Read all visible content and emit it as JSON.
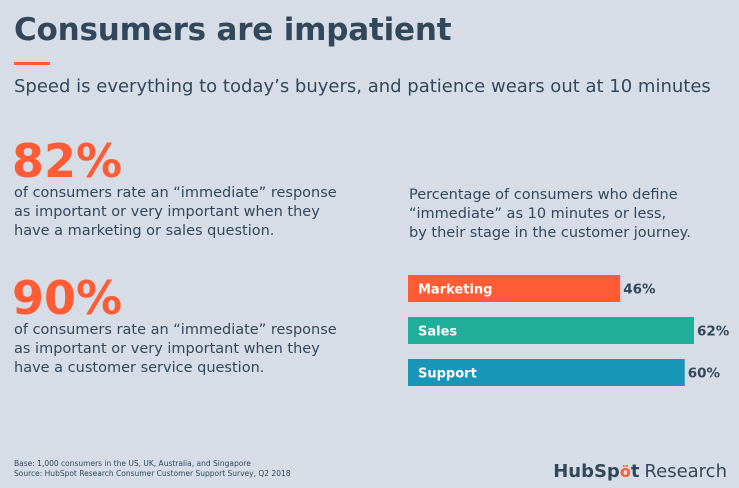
{
  "header": {
    "title": "Consumers are impatient",
    "subtitle": "Speed is everything to today’s buyers, and patience wears out at 10 minutes"
  },
  "stats": [
    {
      "value": "82%",
      "lines": [
        "of consumers rate an “immediate” response",
        "as important or very important when they",
        "have a marketing or sales question."
      ]
    },
    {
      "value": "90%",
      "lines": [
        "of consumers rate an “immediate” response",
        "as important or very important when they",
        "have a customer service question."
      ]
    }
  ],
  "chart_caption": [
    "Percentage of consumers who define",
    "“immediate” as 10 minutes or less,",
    "by their stage in the customer journey."
  ],
  "chart_data": {
    "type": "bar",
    "orientation": "horizontal",
    "categories": [
      "Marketing",
      "Sales",
      "Support"
    ],
    "values": [
      46,
      62,
      60
    ],
    "value_labels": [
      "46%",
      "62%",
      "60%"
    ],
    "colors": [
      "#ff5c35",
      "#1fae98",
      "#1896b8"
    ],
    "xlim": [
      0,
      62
    ],
    "title": "",
    "xlabel": "",
    "ylabel": "",
    "grid": false
  },
  "footer": {
    "base": "Base: 1,000 consumers in the US, UK, Australia, and Singapore",
    "source": "Source: HubSpot Research Consumer Customer Support Survey, Q2 2018"
  },
  "brand": {
    "hub": "HubSp",
    "sprocket": "ö",
    "t": "t",
    "research": "Research"
  },
  "colors": {
    "accent": "#ff5c35",
    "text": "#33475b",
    "background": "#d6dde6"
  }
}
